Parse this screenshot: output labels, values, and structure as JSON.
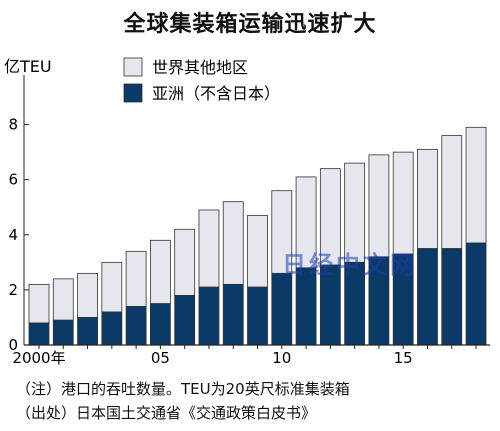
{
  "chart_data": {
    "type": "bar",
    "stacked": true,
    "title": "全球集装箱运输迅速扩大",
    "unit": "亿TEU",
    "x": [
      2000,
      2001,
      2002,
      2003,
      2004,
      2005,
      2006,
      2007,
      2008,
      2009,
      2010,
      2011,
      2012,
      2013,
      2014,
      2015,
      2016,
      2017,
      2018
    ],
    "x_tick_labels": {
      "2000": "2000年",
      "2005": "05",
      "2010": "10",
      "2015": "15"
    },
    "series": [
      {
        "name": "亚洲（不含日本）",
        "color": "#0b3a66",
        "values": [
          0.8,
          0.9,
          1.0,
          1.2,
          1.4,
          1.5,
          1.8,
          2.1,
          2.2,
          2.1,
          2.6,
          2.8,
          2.9,
          3.0,
          3.2,
          3.3,
          3.5,
          3.5,
          3.7
        ]
      },
      {
        "name": "世界其他地区",
        "color": "#e6e6ee",
        "values": [
          1.4,
          1.5,
          1.6,
          1.8,
          2.0,
          2.3,
          2.4,
          2.8,
          3.0,
          2.6,
          3.0,
          3.3,
          3.5,
          3.6,
          3.7,
          3.7,
          3.6,
          4.1,
          4.2
        ]
      }
    ],
    "ylim": [
      0,
      9
    ],
    "yticks": [
      0,
      2,
      4,
      6,
      8
    ],
    "legend_position": "top-left",
    "grid": false
  },
  "notes": {
    "line1": "（注）港口的吞吐数量。TEU为20英尺标准集装箱",
    "line2": "（出处）日本国土交通省《交通政策白皮书》"
  },
  "watermark": "日经中文网"
}
